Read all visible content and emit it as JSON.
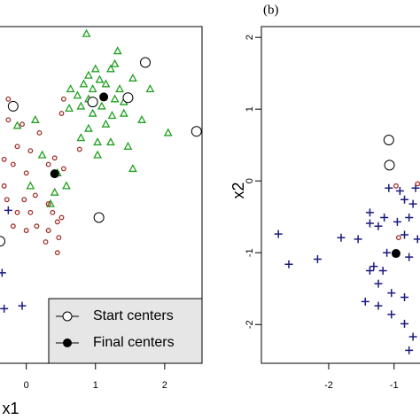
{
  "chart_data": [
    {
      "type": "scatter",
      "x_label": "x1",
      "xlim": [
        -0.38,
        2.54
      ],
      "ylim": [
        -2.54,
        2.15
      ],
      "xticks": [
        0,
        1,
        2
      ],
      "yticks": [],
      "legend": "bottom-right",
      "series": [
        {
          "color": "#1fa01f",
          "marker": "triangle",
          "x": [
            0.87,
            1.32,
            1.28,
            1.22,
            1.0,
            0.9,
            1.06,
            0.83,
            0.64,
            0.96,
            1.15,
            1.35,
            0.74,
            0.9,
            1.28,
            1.41,
            1.54,
            1.79,
            1.09,
            0.79,
            0.62,
            0.96,
            1.24,
            1.41,
            1.67,
            1.15,
            0.9,
            0.79,
            1.03,
            1.22,
            1.47,
            2.05,
            1.54,
            1.03,
            0.45,
            0.58,
            0.41,
            0.35,
            0.13,
            -0.13,
            0.23,
            0.06
          ],
          "y": [
            2.05,
            1.81,
            1.63,
            1.56,
            1.56,
            1.47,
            1.41,
            1.35,
            1.28,
            1.28,
            1.35,
            1.28,
            1.19,
            1.14,
            1.14,
            1.1,
            1.43,
            1.28,
            1.04,
            1.04,
            1.01,
            0.94,
            0.91,
            0.94,
            0.85,
            0.79,
            0.73,
            0.6,
            0.54,
            0.54,
            0.48,
            0.67,
            0.17,
            0.36,
            0.11,
            -0.07,
            -0.16,
            -0.32,
            0.85,
            0.77,
            0.36,
            -0.07
          ]
        },
        {
          "color": "#a3322b",
          "marker": "circle",
          "x": [
            -0.26,
            -0.26,
            -0.06,
            0.19,
            0.51,
            0.54,
            0.77,
            -0.13,
            0.06,
            0.41,
            0.54,
            0.32,
            -0.19,
            0.0,
            -0.32,
            0.13,
            -0.32,
            -0.03,
            0.06,
            0.15,
            0.32,
            0.38,
            0.45,
            0.32,
            0.51,
            0.47,
            -0.13,
            0.28,
            0.45,
            0.0,
            -0.28,
            -0.19
          ],
          "y": [
            1.14,
            0.85,
            0.79,
            0.67,
            0.94,
            1.14,
            0.44,
            0.48,
            0.42,
            0.32,
            0.17,
            0.23,
            0.23,
            0.11,
            0.3,
            -0.2,
            -0.07,
            -0.26,
            -0.44,
            -0.63,
            -0.32,
            -0.44,
            -0.57,
            -0.69,
            -0.51,
            -0.79,
            -0.44,
            -0.85,
            -1.0,
            -0.69,
            -0.26,
            -0.63
          ]
        },
        {
          "color": "#1a1a80",
          "marker": "plus",
          "x": [
            -0.26,
            -0.35,
            -0.32,
            -0.06
          ],
          "y": [
            -0.41,
            -1.28,
            -1.78,
            -1.74
          ]
        },
        {
          "name": "Start centers",
          "color": "#000000",
          "marker": "open",
          "x": [
            1.72,
            -0.19,
            0.96,
            1.47,
            2.46,
            1.05,
            -0.38
          ],
          "y": [
            1.65,
            1.04,
            1.1,
            1.16,
            0.69,
            -0.51,
            -0.84
          ]
        },
        {
          "name": "Final centers",
          "color": "#000000",
          "marker": "filled",
          "x": [
            1.12,
            0.41
          ],
          "y": [
            1.17,
            0.1
          ]
        }
      ]
    },
    {
      "type": "scatter",
      "panel_label": "(b)",
      "y_label": "x2",
      "xlim": [
        -3.03,
        -0.63
      ],
      "ylim": [
        -2.54,
        2.15
      ],
      "xticks": [
        -2,
        -1
      ],
      "yticks": [
        2,
        1,
        0,
        -1,
        -2
      ],
      "series": [
        {
          "color": "#1a1a80",
          "marker": "plus",
          "x": [
            -2.77,
            -2.61,
            -2.17,
            -1.81,
            -1.55,
            -1.37,
            -1.37,
            -1.24,
            -1.15,
            -1.08,
            -0.91,
            -0.84,
            -0.71,
            -0.77,
            -0.64,
            -1.31,
            -1.17,
            -0.77,
            -1.37,
            -1.24,
            -1.04,
            -0.84,
            -1.44,
            -1.24,
            -1.04,
            -0.84,
            -0.71,
            -0.77,
            -1.11,
            -0.95,
            -0.84,
            -0.67
          ],
          "y": [
            -0.74,
            -1.16,
            -1.09,
            -0.79,
            -0.81,
            -0.44,
            -0.59,
            -0.63,
            -0.51,
            -0.1,
            -0.14,
            -0.26,
            -0.32,
            -0.51,
            -0.81,
            -1.19,
            -1.25,
            -1.06,
            -1.25,
            -1.43,
            -1.56,
            -1.62,
            -1.68,
            -1.74,
            -1.86,
            -1.99,
            -2.17,
            -2.36,
            -1.0,
            -0.57,
            -0.75,
            -0.1
          ]
        },
        {
          "color": "#a3322b",
          "marker": "circle",
          "x": [
            -0.97,
            -0.64,
            -0.93
          ],
          "y": [
            -0.07,
            -0.04,
            -0.79
          ]
        },
        {
          "color": "#000000",
          "marker": "open",
          "x": [
            -1.08,
            -1.07
          ],
          "y": [
            0.57,
            0.22
          ]
        },
        {
          "color": "#000000",
          "marker": "filled",
          "x": [
            -0.97
          ],
          "y": [
            -1.01
          ]
        }
      ]
    }
  ]
}
